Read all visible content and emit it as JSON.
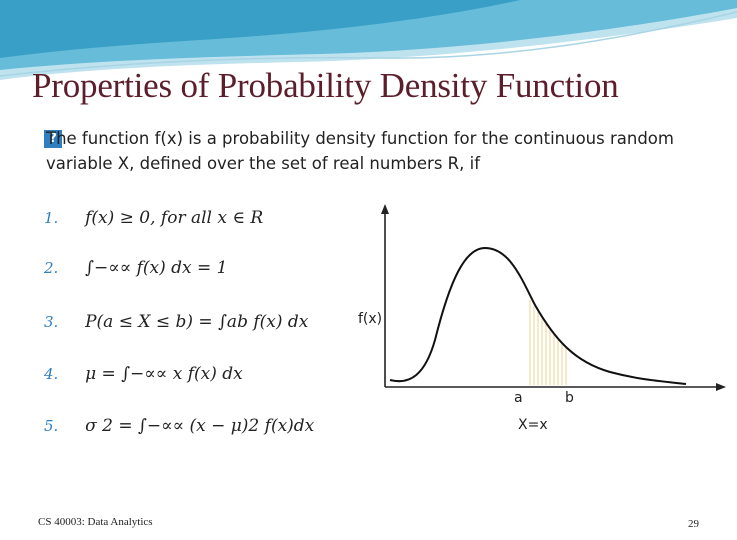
{
  "slide": {
    "title": "Properties of Probability Density Function",
    "bullet_glyph": "?",
    "intro_line1": "The function f(x) is a probability density function for the continuous random",
    "intro_line2": "variable X, defined over the set of real numbers R, if"
  },
  "properties": [
    {
      "num": "1.",
      "formula": "f(x) ≥ 0, for all x ∈ R"
    },
    {
      "num": "2.",
      "formula": "∫−∝∝ f(x) dx = 1"
    },
    {
      "num": "3.",
      "formula": "P(a ≤ X ≤ b) = ∫ab f(x) dx"
    },
    {
      "num": "4.",
      "formula": "μ = ∫−∝∝ x f(x) dx"
    },
    {
      "num": "5.",
      "formula": "σ 2 = ∫−∝∝ (x − μ)2 f(x)dx"
    }
  ],
  "graph": {
    "y_label": "f(x)",
    "a_label": "a",
    "b_label": "b",
    "x_label": "X=x"
  },
  "footer": {
    "course": "CS 40003: Data Analytics",
    "page": "29"
  },
  "colors": {
    "title": "#5c1e2a",
    "accent": "#2f7ec0",
    "shade": "#f3d9a2"
  }
}
